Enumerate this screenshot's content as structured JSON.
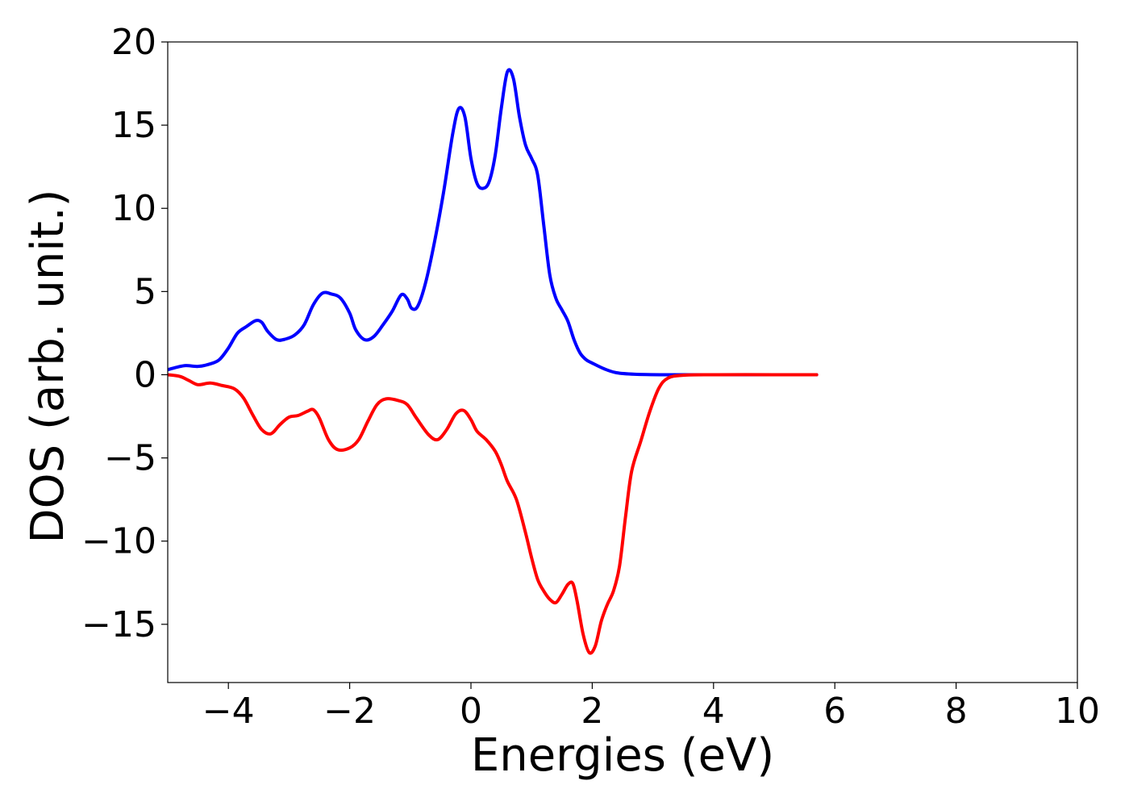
{
  "chart_data": {
    "type": "line",
    "title": "",
    "xlabel": "Energies (eV)",
    "ylabel": "DOS (arb. unit.)",
    "xlim": [
      -5,
      10
    ],
    "ylim": [
      -18.5,
      20
    ],
    "xticks": [
      -4,
      -2,
      0,
      2,
      4,
      6,
      8,
      10
    ],
    "yticks": [
      -15,
      -10,
      -5,
      0,
      5,
      10,
      15,
      20
    ],
    "xtick_labels": [
      "−4",
      "−2",
      "0",
      "2",
      "4",
      "6",
      "8",
      "10"
    ],
    "ytick_labels": [
      "−15",
      "−10",
      "−5",
      "0",
      "5",
      "10",
      "15",
      "20"
    ],
    "grid": false,
    "legend": "none",
    "series": [
      {
        "color": "#0000ff",
        "points": [
          [
            -5.0,
            0.3
          ],
          [
            -4.85,
            0.45
          ],
          [
            -4.7,
            0.55
          ],
          [
            -4.5,
            0.5
          ],
          [
            -4.3,
            0.65
          ],
          [
            -4.15,
            0.9
          ],
          [
            -4.0,
            1.6
          ],
          [
            -3.85,
            2.5
          ],
          [
            -3.7,
            2.9
          ],
          [
            -3.55,
            3.25
          ],
          [
            -3.45,
            3.15
          ],
          [
            -3.35,
            2.6
          ],
          [
            -3.2,
            2.1
          ],
          [
            -3.05,
            2.15
          ],
          [
            -2.9,
            2.4
          ],
          [
            -2.75,
            3.0
          ],
          [
            -2.6,
            4.2
          ],
          [
            -2.45,
            4.9
          ],
          [
            -2.3,
            4.85
          ],
          [
            -2.15,
            4.6
          ],
          [
            -2.0,
            3.7
          ],
          [
            -1.9,
            2.7
          ],
          [
            -1.75,
            2.1
          ],
          [
            -1.6,
            2.3
          ],
          [
            -1.45,
            3.0
          ],
          [
            -1.3,
            3.8
          ],
          [
            -1.15,
            4.8
          ],
          [
            -1.05,
            4.55
          ],
          [
            -0.98,
            4.0
          ],
          [
            -0.88,
            4.1
          ],
          [
            -0.75,
            5.5
          ],
          [
            -0.6,
            8.0
          ],
          [
            -0.45,
            11.0
          ],
          [
            -0.3,
            14.5
          ],
          [
            -0.2,
            16.0
          ],
          [
            -0.1,
            15.5
          ],
          [
            0.0,
            13.0
          ],
          [
            0.1,
            11.5
          ],
          [
            0.2,
            11.2
          ],
          [
            0.3,
            11.6
          ],
          [
            0.4,
            13.2
          ],
          [
            0.5,
            16.0
          ],
          [
            0.6,
            18.2
          ],
          [
            0.7,
            17.8
          ],
          [
            0.8,
            15.5
          ],
          [
            0.9,
            13.8
          ],
          [
            1.0,
            13.0
          ],
          [
            1.1,
            12.0
          ],
          [
            1.2,
            9.0
          ],
          [
            1.3,
            6.0
          ],
          [
            1.4,
            4.6
          ],
          [
            1.5,
            3.9
          ],
          [
            1.6,
            3.2
          ],
          [
            1.7,
            2.1
          ],
          [
            1.8,
            1.3
          ],
          [
            1.9,
            0.9
          ],
          [
            2.0,
            0.7
          ],
          [
            2.2,
            0.35
          ],
          [
            2.4,
            0.12
          ],
          [
            2.7,
            0.03
          ],
          [
            3.2,
            0.0
          ],
          [
            4.0,
            0.0
          ],
          [
            5.0,
            0.0
          ],
          [
            5.7,
            0.0
          ]
        ]
      },
      {
        "color": "#ff0000",
        "points": [
          [
            -5.0,
            0.0
          ],
          [
            -4.8,
            -0.1
          ],
          [
            -4.65,
            -0.35
          ],
          [
            -4.5,
            -0.6
          ],
          [
            -4.3,
            -0.5
          ],
          [
            -4.1,
            -0.65
          ],
          [
            -3.9,
            -0.85
          ],
          [
            -3.75,
            -1.4
          ],
          [
            -3.6,
            -2.4
          ],
          [
            -3.45,
            -3.3
          ],
          [
            -3.3,
            -3.55
          ],
          [
            -3.15,
            -3.0
          ],
          [
            -3.0,
            -2.55
          ],
          [
            -2.85,
            -2.45
          ],
          [
            -2.7,
            -2.2
          ],
          [
            -2.6,
            -2.1
          ],
          [
            -2.5,
            -2.6
          ],
          [
            -2.35,
            -3.9
          ],
          [
            -2.2,
            -4.5
          ],
          [
            -2.0,
            -4.4
          ],
          [
            -1.85,
            -3.9
          ],
          [
            -1.7,
            -2.8
          ],
          [
            -1.55,
            -1.8
          ],
          [
            -1.4,
            -1.45
          ],
          [
            -1.2,
            -1.55
          ],
          [
            -1.05,
            -1.8
          ],
          [
            -0.9,
            -2.6
          ],
          [
            -0.7,
            -3.6
          ],
          [
            -0.55,
            -3.9
          ],
          [
            -0.4,
            -3.3
          ],
          [
            -0.25,
            -2.35
          ],
          [
            -0.12,
            -2.15
          ],
          [
            0.0,
            -2.7
          ],
          [
            0.1,
            -3.4
          ],
          [
            0.25,
            -3.9
          ],
          [
            0.4,
            -4.6
          ],
          [
            0.5,
            -5.4
          ],
          [
            0.6,
            -6.4
          ],
          [
            0.75,
            -7.5
          ],
          [
            0.9,
            -9.5
          ],
          [
            1.0,
            -11.0
          ],
          [
            1.1,
            -12.3
          ],
          [
            1.2,
            -13.0
          ],
          [
            1.3,
            -13.5
          ],
          [
            1.4,
            -13.7
          ],
          [
            1.5,
            -13.2
          ],
          [
            1.6,
            -12.6
          ],
          [
            1.68,
            -12.55
          ],
          [
            1.75,
            -13.6
          ],
          [
            1.85,
            -15.6
          ],
          [
            1.95,
            -16.7
          ],
          [
            2.05,
            -16.3
          ],
          [
            2.15,
            -14.8
          ],
          [
            2.25,
            -13.8
          ],
          [
            2.35,
            -13.0
          ],
          [
            2.45,
            -11.5
          ],
          [
            2.55,
            -8.5
          ],
          [
            2.65,
            -5.8
          ],
          [
            2.8,
            -4.0
          ],
          [
            2.95,
            -2.2
          ],
          [
            3.1,
            -0.8
          ],
          [
            3.25,
            -0.2
          ],
          [
            3.5,
            -0.03
          ],
          [
            4.0,
            0.0
          ],
          [
            5.0,
            0.0
          ],
          [
            5.7,
            0.0
          ]
        ]
      }
    ]
  }
}
